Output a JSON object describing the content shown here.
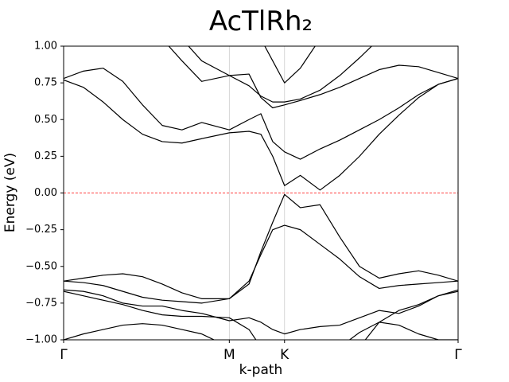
{
  "chart_data": {
    "type": "line",
    "title": "AcTlRh₂",
    "x_label": "k-path",
    "y_label": "Energy (eV)",
    "xlim": [
      0,
      1
    ],
    "ylim": [
      -1.0,
      1.0
    ],
    "xticks": [
      {
        "value": 0,
        "label": "Γ"
      },
      {
        "value": 0.42,
        "label": "M"
      },
      {
        "value": 0.56,
        "label": "K"
      },
      {
        "value": 1,
        "label": "Γ"
      }
    ],
    "yticks": [
      {
        "value": 1.0,
        "label": "1.00"
      },
      {
        "value": 0.75,
        "label": "0.75"
      },
      {
        "value": 0.5,
        "label": "0.50"
      },
      {
        "value": 0.25,
        "label": "0.25"
      },
      {
        "value": 0,
        "label": "0.00"
      },
      {
        "value": -0.25,
        "label": "−0.25"
      },
      {
        "value": -0.5,
        "label": "−0.50"
      },
      {
        "value": -0.75,
        "label": "−0.75"
      },
      {
        "value": -1.0,
        "label": "−1.00"
      }
    ],
    "x_grid": true,
    "fermi_level": 0,
    "fermi_color": "#ff0000",
    "x": [
      0,
      0.05,
      0.1,
      0.15,
      0.2,
      0.25,
      0.3,
      0.35,
      0.42,
      0.47,
      0.5,
      0.53,
      0.56,
      0.6,
      0.65,
      0.7,
      0.75,
      0.8,
      0.85,
      0.9,
      0.95,
      1.0
    ],
    "series": [
      {
        "color": "#000000",
        "values": [
          0.77,
          0.72,
          0.62,
          0.5,
          0.4,
          0.35,
          0.34,
          0.37,
          0.41,
          0.42,
          0.4,
          0.25,
          0.05,
          0.12,
          0.02,
          0.12,
          0.25,
          0.4,
          0.53,
          0.65,
          0.74,
          0.78
        ]
      },
      {
        "color": "#000000",
        "values": [
          0.78,
          0.83,
          0.85,
          0.76,
          0.6,
          0.46,
          0.43,
          0.48,
          0.43,
          0.5,
          0.54,
          0.35,
          0.28,
          0.23,
          0.3,
          0.36,
          0.43,
          0.5,
          0.58,
          0.67,
          0.74,
          0.78
        ]
      },
      {
        "color": "#000000",
        "values": [
          null,
          null,
          null,
          null,
          null,
          1.05,
          0.9,
          0.76,
          0.8,
          0.81,
          0.65,
          0.58,
          0.6,
          0.63,
          0.67,
          0.72,
          0.78,
          0.84,
          0.87,
          0.86,
          0.82,
          0.78
        ]
      },
      {
        "color": "#000000",
        "values": [
          null,
          null,
          null,
          null,
          null,
          null,
          1.05,
          0.9,
          0.8,
          0.73,
          0.66,
          0.62,
          0.62,
          0.64,
          0.7,
          0.8,
          0.92,
          1.05,
          null,
          null,
          null,
          null
        ]
      },
      {
        "color": "#000000",
        "values": [
          null,
          null,
          null,
          null,
          null,
          null,
          null,
          null,
          null,
          null,
          1.05,
          0.9,
          0.75,
          0.85,
          1.05,
          null,
          null,
          null,
          null,
          null,
          null,
          null
        ]
      },
      {
        "color": "#000000",
        "values": [
          -0.6,
          -0.58,
          -0.56,
          -0.55,
          -0.57,
          -0.62,
          -0.68,
          -0.72,
          -0.72,
          -0.62,
          -0.4,
          -0.2,
          -0.01,
          -0.1,
          -0.08,
          -0.3,
          -0.5,
          -0.58,
          -0.55,
          -0.53,
          -0.56,
          -0.6
        ]
      },
      {
        "color": "#000000",
        "values": [
          -0.6,
          -0.61,
          -0.63,
          -0.67,
          -0.71,
          -0.73,
          -0.74,
          -0.75,
          -0.72,
          -0.6,
          -0.42,
          -0.25,
          -0.22,
          -0.25,
          -0.35,
          -0.45,
          -0.57,
          -0.65,
          -0.63,
          -0.62,
          -0.61,
          -0.6
        ]
      },
      {
        "color": "#000000",
        "values": [
          -0.66,
          -0.67,
          -0.7,
          -0.75,
          -0.77,
          -0.77,
          -0.8,
          -0.82,
          -0.87,
          -0.85,
          -0.88,
          -0.93,
          -0.96,
          -0.93,
          -0.91,
          -0.9,
          -0.85,
          -0.8,
          -0.82,
          -0.77,
          -0.7,
          -0.67
        ]
      },
      {
        "color": "#000000",
        "values": [
          -0.67,
          -0.7,
          -0.73,
          -0.76,
          -0.8,
          -0.83,
          -0.84,
          -0.84,
          -0.85,
          -0.93,
          -1.05,
          null,
          null,
          null,
          null,
          -1.05,
          -0.95,
          -0.88,
          -0.8,
          -0.76,
          -0.7,
          -0.66
        ]
      },
      {
        "color": "#000000",
        "values": [
          -1.0,
          -0.96,
          -0.93,
          -0.9,
          -0.89,
          -0.9,
          -0.93,
          -0.96,
          -1.05,
          null,
          null,
          null,
          null,
          null,
          null,
          null,
          -1.05,
          -0.88,
          -0.9,
          -0.96,
          -1.0,
          -1.0
        ]
      }
    ]
  }
}
